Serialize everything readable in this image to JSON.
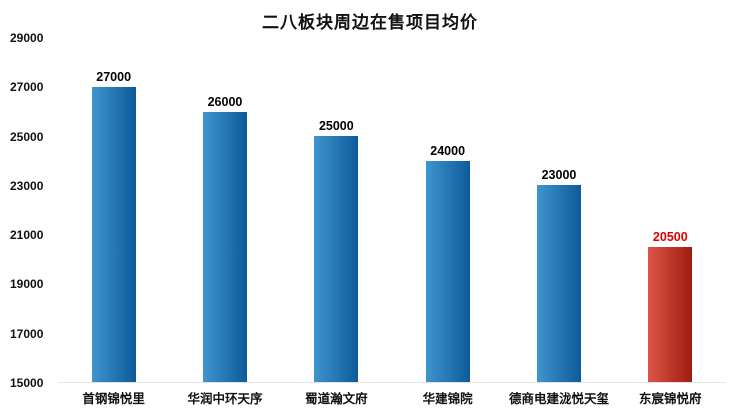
{
  "chart_data": {
    "type": "bar",
    "title": "二八板块周边在售项目均价",
    "categories": [
      "首钢锦悦里",
      "华润中环天序",
      "蜀道瀚文府",
      "华建锦院",
      "德商电建泷悦天玺",
      "东宸锦悦府"
    ],
    "values": [
      27000,
      26000,
      25000,
      24000,
      23000,
      20500
    ],
    "value_labels": [
      "27000",
      "26000",
      "25000",
      "24000",
      "23000",
      "20500"
    ],
    "ylim": [
      15000,
      29000
    ],
    "yticks": [
      15000,
      17000,
      19000,
      21000,
      23000,
      25000,
      27000,
      29000
    ],
    "ytick_labels": [
      "15000",
      "17000",
      "19000",
      "21000",
      "23000",
      "25000",
      "27000",
      "29000"
    ],
    "grid": false,
    "legend": false,
    "xlabel": "",
    "ylabel": "",
    "bar_styles": [
      {
        "from": "#3f95cd",
        "to": "#0d5a9a",
        "label_color": "#000000"
      },
      {
        "from": "#3f95cd",
        "to": "#0d5a9a",
        "label_color": "#000000"
      },
      {
        "from": "#3f95cd",
        "to": "#0d5a9a",
        "label_color": "#000000"
      },
      {
        "from": "#3f95cd",
        "to": "#0d5a9a",
        "label_color": "#000000"
      },
      {
        "from": "#3f95cd",
        "to": "#0d5a9a",
        "label_color": "#000000"
      },
      {
        "from": "#dd5547",
        "to": "#9f1c10",
        "label_color": "#e00000"
      }
    ],
    "accent_blue": "#1a6fb0",
    "accent_red": "#c42418",
    "background_color": "#ffffff"
  }
}
